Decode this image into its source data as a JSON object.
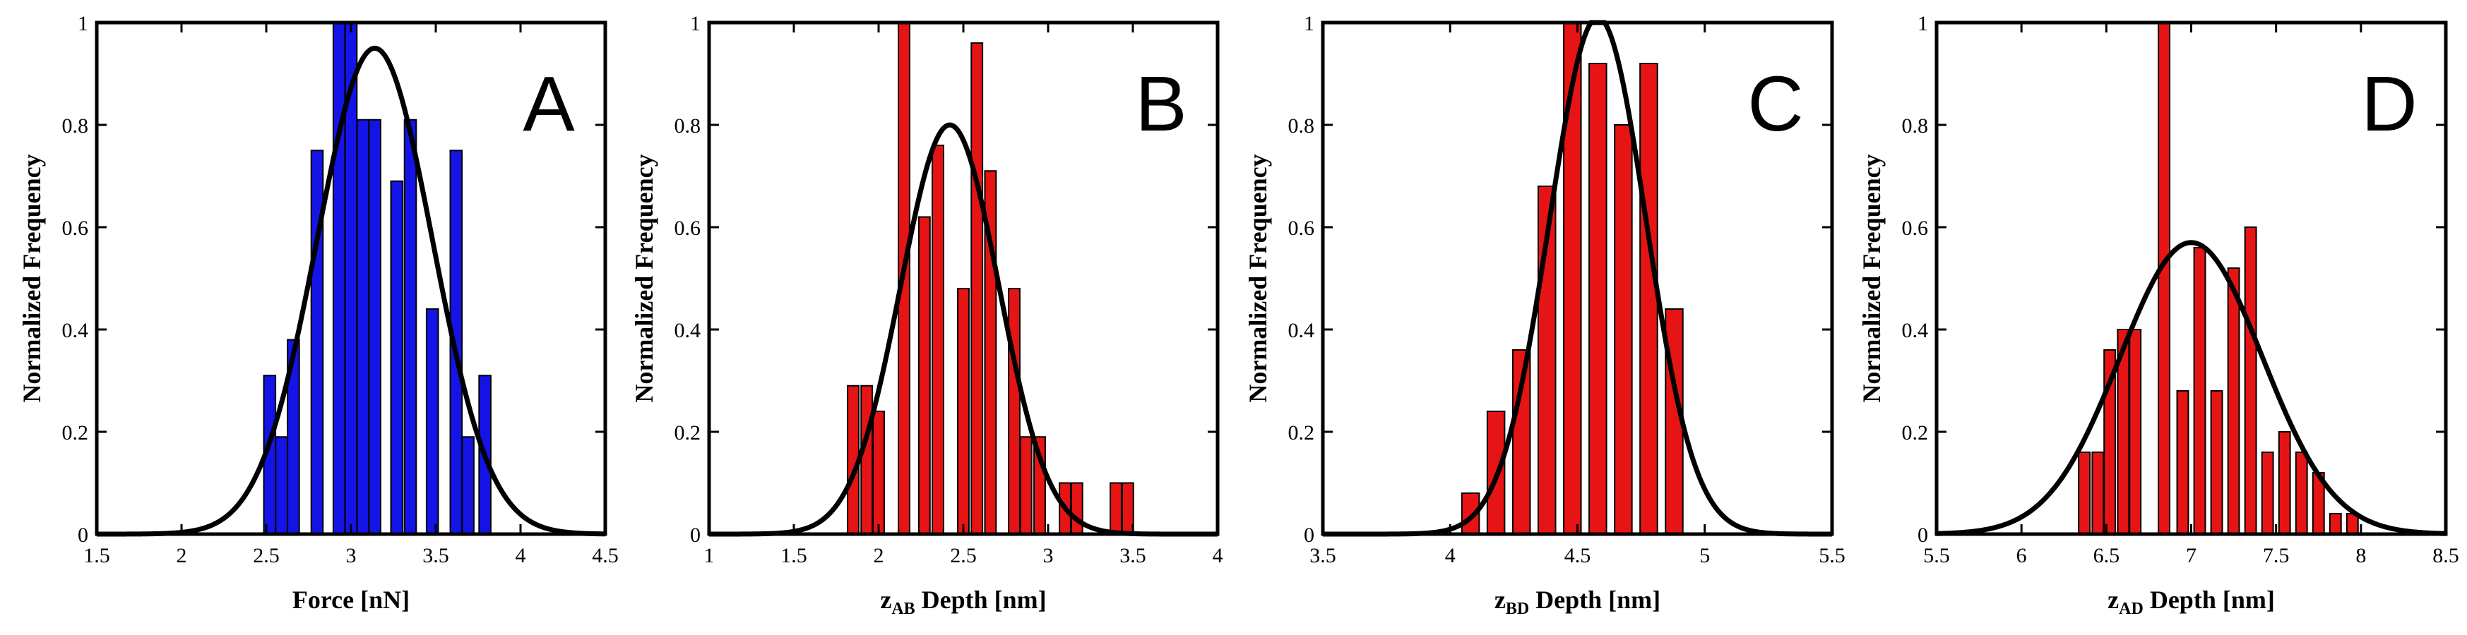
{
  "chart_data": [
    {
      "type": "bar",
      "panel": "A",
      "xlabel": "Force [nN]",
      "xlabel_sub": "",
      "xlabel_rest": "",
      "ylabel": "Normalized Frequency",
      "xlim": [
        1.5,
        4.5
      ],
      "ylim": [
        0,
        1
      ],
      "xticks": [
        "1.5",
        "2",
        "2.5",
        "3",
        "3.5",
        "4",
        "4.5"
      ],
      "yticks": [
        "0",
        "0.2",
        "0.4",
        "0.6",
        "0.8",
        "1"
      ],
      "bar_color": "#1414e6",
      "bar_width": 0.069,
      "bars": [
        {
          "x": 2.52,
          "y": 0.31
        },
        {
          "x": 2.59,
          "y": 0.19
        },
        {
          "x": 2.66,
          "y": 0.38
        },
        {
          "x": 2.8,
          "y": 0.75
        },
        {
          "x": 2.93,
          "y": 1.0
        },
        {
          "x": 3.0,
          "y": 1.0
        },
        {
          "x": 3.07,
          "y": 0.81
        },
        {
          "x": 3.14,
          "y": 0.81
        },
        {
          "x": 3.27,
          "y": 0.69
        },
        {
          "x": 3.35,
          "y": 0.81
        },
        {
          "x": 3.48,
          "y": 0.44
        },
        {
          "x": 3.62,
          "y": 0.75
        },
        {
          "x": 3.69,
          "y": 0.19
        },
        {
          "x": 3.79,
          "y": 0.31
        }
      ],
      "fit": {
        "mu": 3.14,
        "sigma": 0.34,
        "amplitude": 0.95
      }
    },
    {
      "type": "bar",
      "panel": "B",
      "xlabel": "",
      "xlabel_main": "z",
      "xlabel_sub": "AB",
      "xlabel_rest": " Depth [nm]",
      "ylabel": "Normalized Frequency",
      "xlim": [
        1,
        4
      ],
      "ylim": [
        0,
        1
      ],
      "xticks": [
        "1",
        "1.5",
        "2",
        "2.5",
        "3",
        "3.5",
        "4"
      ],
      "yticks": [
        "0",
        "0.2",
        "0.4",
        "0.6",
        "0.8",
        "1"
      ],
      "bar_color": "#e61414",
      "bar_width": 0.066,
      "bars": [
        {
          "x": 1.85,
          "y": 0.29
        },
        {
          "x": 1.93,
          "y": 0.29
        },
        {
          "x": 2.0,
          "y": 0.24
        },
        {
          "x": 2.15,
          "y": 1.0
        },
        {
          "x": 2.27,
          "y": 0.62
        },
        {
          "x": 2.35,
          "y": 0.76
        },
        {
          "x": 2.5,
          "y": 0.48
        },
        {
          "x": 2.58,
          "y": 0.96
        },
        {
          "x": 2.66,
          "y": 0.71
        },
        {
          "x": 2.8,
          "y": 0.48
        },
        {
          "x": 2.87,
          "y": 0.19
        },
        {
          "x": 2.95,
          "y": 0.19
        },
        {
          "x": 3.1,
          "y": 0.1
        },
        {
          "x": 3.17,
          "y": 0.1
        },
        {
          "x": 3.4,
          "y": 0.1
        },
        {
          "x": 3.47,
          "y": 0.1
        }
      ],
      "fit": {
        "mu": 2.42,
        "sigma": 0.29,
        "amplitude": 0.8
      }
    },
    {
      "type": "bar",
      "panel": "C",
      "xlabel": "",
      "xlabel_main": "z",
      "xlabel_sub": "BD",
      "xlabel_rest": " Depth [nm]",
      "ylabel": "Normalized Frequency",
      "xlim": [
        3.5,
        5.5
      ],
      "ylim": [
        0,
        1
      ],
      "xticks": [
        "3.5",
        "4",
        "4.5",
        "5",
        "5.5"
      ],
      "yticks": [
        "0",
        "0.2",
        "0.4",
        "0.6",
        "0.8",
        "1"
      ],
      "bar_color": "#e61414",
      "bar_width": 0.068,
      "bars": [
        {
          "x": 4.08,
          "y": 0.08
        },
        {
          "x": 4.18,
          "y": 0.24
        },
        {
          "x": 4.28,
          "y": 0.36
        },
        {
          "x": 4.38,
          "y": 0.68
        },
        {
          "x": 4.48,
          "y": 1.0
        },
        {
          "x": 4.58,
          "y": 0.92
        },
        {
          "x": 4.68,
          "y": 0.8
        },
        {
          "x": 4.78,
          "y": 0.92
        },
        {
          "x": 4.88,
          "y": 0.44
        }
      ],
      "fit": {
        "mu": 4.58,
        "sigma": 0.19,
        "amplitude": 1.01
      }
    },
    {
      "type": "bar",
      "panel": "D",
      "xlabel": "",
      "xlabel_main": "z",
      "xlabel_sub": "AD",
      "xlabel_rest": " Depth [nm]",
      "ylabel": "Normalized Frequency",
      "xlim": [
        5.5,
        8.5
      ],
      "ylim": [
        0,
        1
      ],
      "xticks": [
        "5.5",
        "6",
        "6.5",
        "7",
        "7.5",
        "8",
        "8.5"
      ],
      "yticks": [
        "0",
        "0.2",
        "0.4",
        "0.6",
        "0.8",
        "1"
      ],
      "bar_color": "#e61414",
      "bar_width": 0.066,
      "bars": [
        {
          "x": 6.37,
          "y": 0.16
        },
        {
          "x": 6.45,
          "y": 0.16
        },
        {
          "x": 6.52,
          "y": 0.36
        },
        {
          "x": 6.6,
          "y": 0.4
        },
        {
          "x": 6.67,
          "y": 0.4
        },
        {
          "x": 6.84,
          "y": 1.0
        },
        {
          "x": 6.95,
          "y": 0.28
        },
        {
          "x": 7.05,
          "y": 0.56
        },
        {
          "x": 7.15,
          "y": 0.28
        },
        {
          "x": 7.25,
          "y": 0.52
        },
        {
          "x": 7.35,
          "y": 0.6
        },
        {
          "x": 7.45,
          "y": 0.16
        },
        {
          "x": 7.55,
          "y": 0.2
        },
        {
          "x": 7.65,
          "y": 0.16
        },
        {
          "x": 7.75,
          "y": 0.12
        },
        {
          "x": 7.85,
          "y": 0.04
        },
        {
          "x": 7.95,
          "y": 0.04
        }
      ],
      "fit": {
        "mu": 7.0,
        "sigma": 0.42,
        "amplitude": 0.57
      }
    }
  ]
}
